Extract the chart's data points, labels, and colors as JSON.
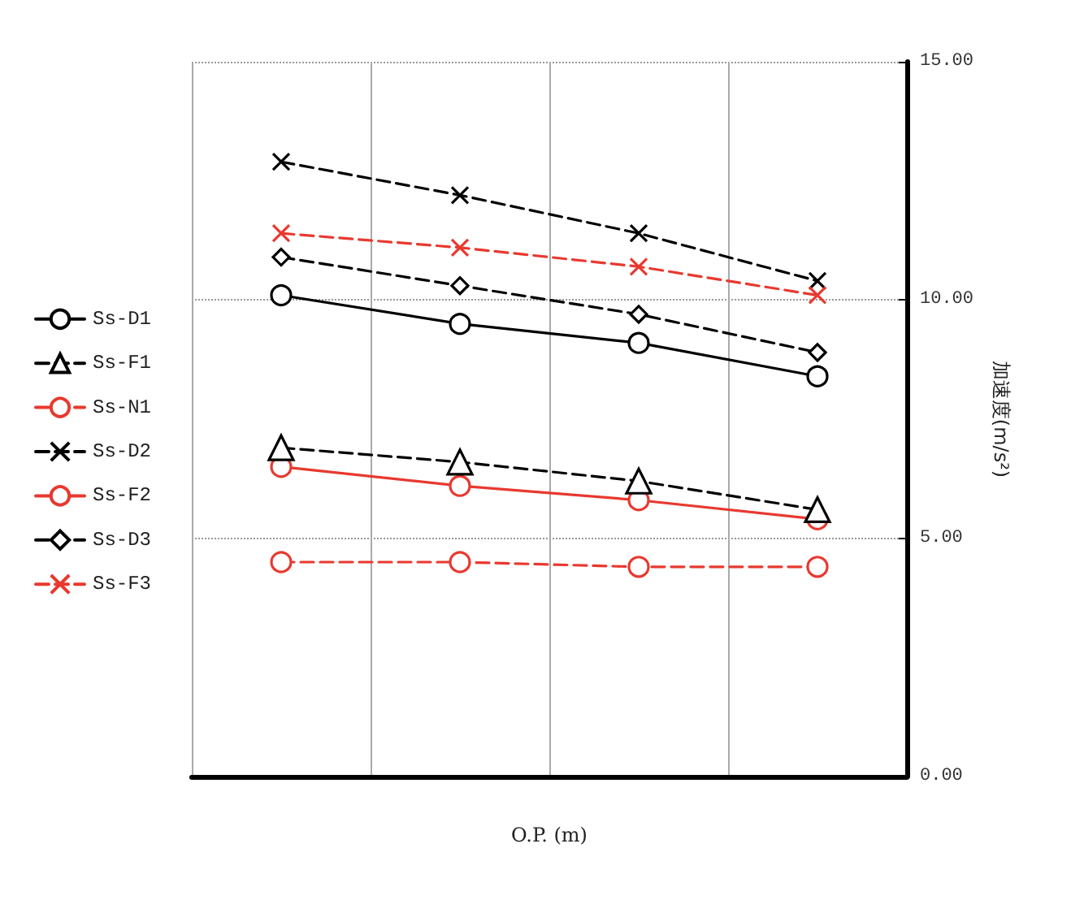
{
  "chart_data": {
    "type": "line",
    "xlabel": "O.P. (m)",
    "ylabel": "加速度(m/s²)",
    "categories": [
      null,
      null,
      null,
      null
    ],
    "ylim": [
      0,
      15
    ],
    "yticks": [
      {
        "value": 0,
        "label": "0.00"
      },
      {
        "value": 5,
        "label": "5.00"
      },
      {
        "value": 10,
        "label": "10.00"
      },
      {
        "value": 15,
        "label": "15.00"
      }
    ],
    "grid": true,
    "legend": "left",
    "tick_labels": "y",
    "series": [
      {
        "name": "Ss-D1",
        "color": "#000000",
        "marker": "circle",
        "line_style": "solid",
        "values": [
          10.1,
          9.5,
          9.1,
          8.4
        ]
      },
      {
        "name": "Ss-F1",
        "color": "#000000",
        "marker": "triangle",
        "line_style": "dashed",
        "values": [
          6.9,
          6.6,
          6.2,
          5.6
        ]
      },
      {
        "name": "Ss-N1",
        "color": "#e8392f",
        "marker": "circle",
        "line_style": "dashed",
        "values": [
          4.5,
          4.5,
          4.4,
          4.4
        ]
      },
      {
        "name": "Ss-D2",
        "color": "#000000",
        "marker": "cross",
        "line_style": "dashed",
        "values": [
          12.9,
          12.2,
          11.4,
          10.4
        ]
      },
      {
        "name": "Ss-F2",
        "color": "#e8392f",
        "marker": "circle",
        "line_style": "solid",
        "values": [
          6.5,
          6.1,
          5.8,
          5.4
        ]
      },
      {
        "name": "Ss-D3",
        "color": "#000000",
        "marker": "diamond",
        "line_style": "dashed",
        "values": [
          10.9,
          10.3,
          9.7,
          8.9
        ]
      },
      {
        "name": "Ss-F3",
        "color": "#e8392f",
        "marker": "cross",
        "line_style": "dashed",
        "values": [
          11.4,
          11.1,
          10.7,
          10.1
        ]
      }
    ]
  }
}
